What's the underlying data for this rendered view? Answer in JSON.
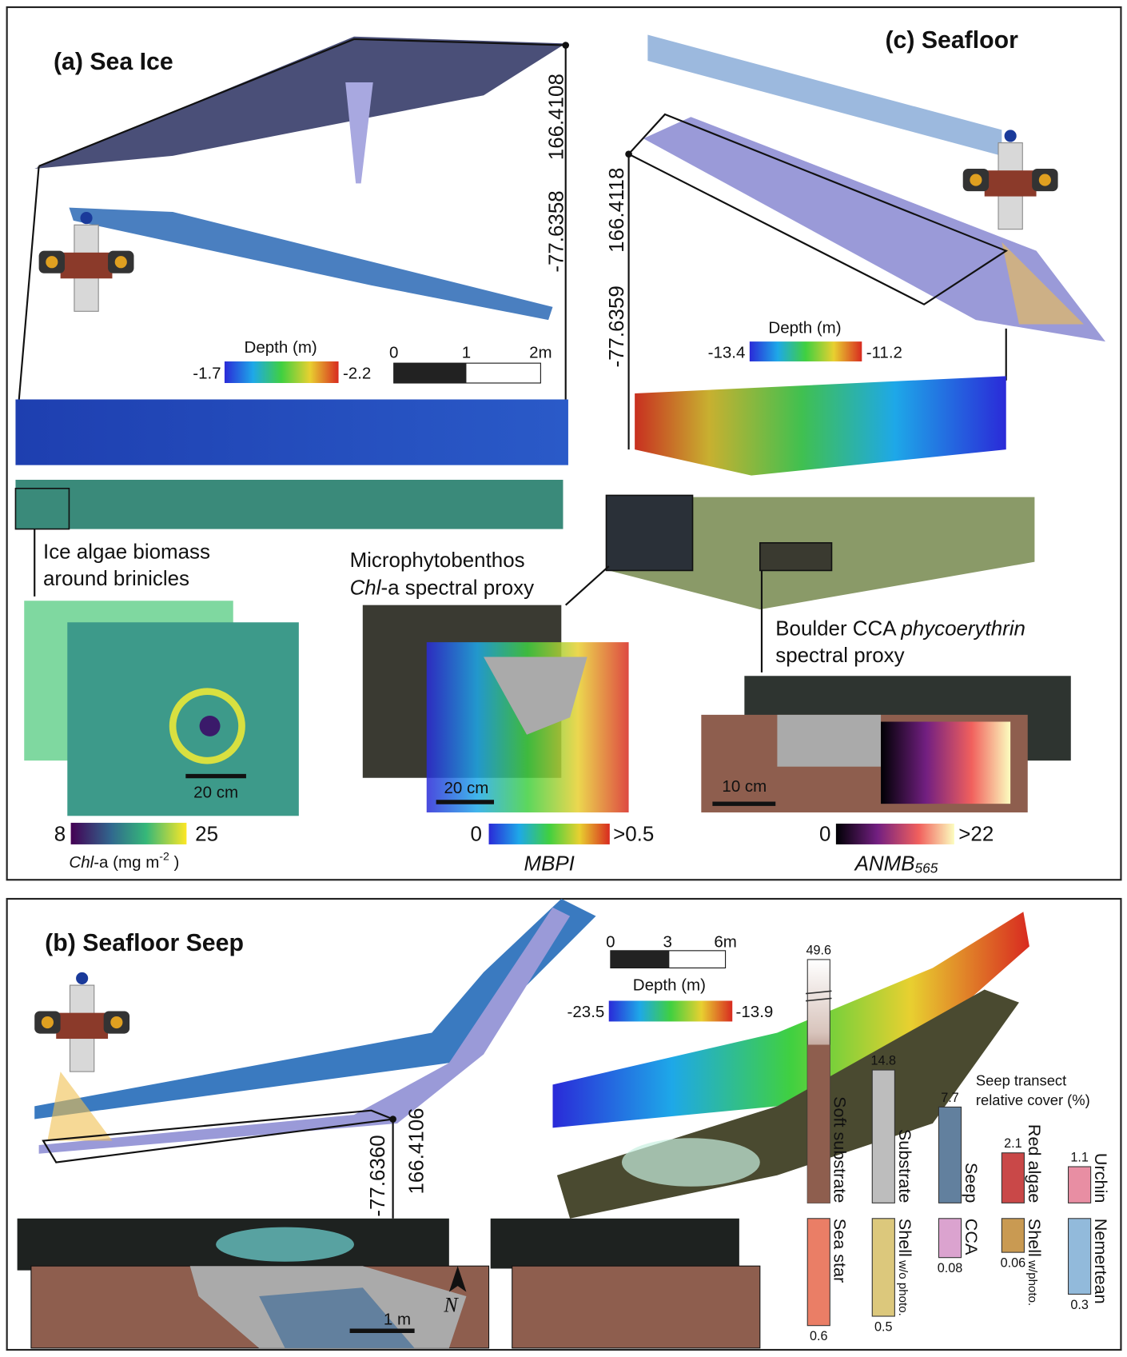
{
  "panel_a": {
    "title": "(a) Sea Ice",
    "longitude": "166.4108",
    "latitude": "-77.6358",
    "depth_legend": {
      "title": "Depth (m)",
      "min": "-1.7",
      "max": "-2.2"
    },
    "scale_bar": [
      "0",
      "1",
      "2m"
    ],
    "caption": [
      "Ice algae biomass",
      "around brinicles"
    ],
    "inset_scale": "20 cm",
    "colorbar": {
      "min": "8",
      "max": "25",
      "label": {
        "italic": "Chl",
        "text": "-a (mg m",
        "sup": "-2",
        "end": " )"
      }
    }
  },
  "panel_c": {
    "title": "(c) Seafloor",
    "longitude": "166.4118",
    "latitude": "-77.6359",
    "depth_legend": {
      "title": "Depth (m)",
      "min": "-13.4",
      "max": "-11.2"
    },
    "mpb_caption": {
      "line1": "Microphytobenthos",
      "italic": "Chl",
      "line2": "-a spectral proxy"
    },
    "mpb_scale": "20 cm",
    "mpb_colorbar": {
      "min": "0",
      "max": ">0.5",
      "label": "MBPI"
    },
    "cca_caption": {
      "text": "Boulder CCA ",
      "italic": "phycoerythrin",
      "line2": "spectral proxy"
    },
    "cca_scale": "10 cm",
    "cca_colorbar": {
      "min": "0",
      "max": ">22",
      "label": {
        "text": "ANMB",
        "sub": "565"
      }
    }
  },
  "panel_b": {
    "title": "(b) Seafloor Seep",
    "scale_bar": [
      "0",
      "3",
      "6m"
    ],
    "depth_legend": {
      "title": "Depth (m)",
      "min": "-23.5",
      "max": "-13.9"
    },
    "longitude": "166.4106",
    "latitude": "-77.6360",
    "map_scale": "1 m",
    "north": "N",
    "cover": {
      "title": [
        "Seep transect",
        "relative cover (%)"
      ],
      "bars": [
        {
          "name": "Soft substrate",
          "value": 49.6,
          "color": "#8e5e4e",
          "row": "top",
          "break": true
        },
        {
          "name": "Substrate",
          "value": 14.8,
          "color": "#bdbdbd",
          "row": "top"
        },
        {
          "name": "Seep",
          "value": 7.7,
          "color": "#62809e",
          "row": "top"
        },
        {
          "name": "Red algae",
          "value": 2.1,
          "color": "#c94848",
          "row": "top"
        },
        {
          "name": "Urchin",
          "value": 1.1,
          "color": "#e88ea3",
          "row": "top"
        },
        {
          "name": "Sea star",
          "value": 0.6,
          "color": "#ea7e66",
          "row": "bottom"
        },
        {
          "name": "Shell",
          "qualifier": "w/o photo.",
          "value": 0.5,
          "color": "#dcc87c",
          "row": "bottom"
        },
        {
          "name": "CCA",
          "value": 0.08,
          "color": "#dba3cf",
          "row": "bottom"
        },
        {
          "name": "Shell",
          "qualifier": "w/photo.",
          "value": 0.06,
          "color": "#c99a52",
          "row": "bottom"
        },
        {
          "name": "Nemertean",
          "value": 0.3,
          "color": "#92badb",
          "row": "bottom"
        }
      ]
    }
  }
}
